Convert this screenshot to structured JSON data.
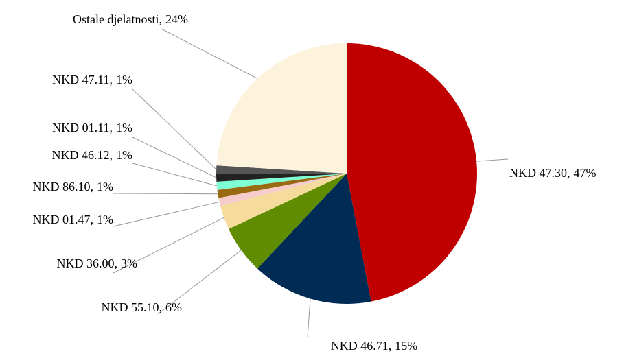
{
  "chart_data": {
    "type": "pie",
    "categories": [
      "NKD 47.30,",
      "NKD 46.71,",
      "NKD 55.10,",
      "NKD 36.00,",
      "NKD 01.47,",
      "NKD 86.10,",
      "NKD 46.12,",
      "NKD 01.11,",
      "NKD 47.11,",
      "Ostale djelatnosti,"
    ],
    "values": [
      47,
      15,
      6,
      3,
      1,
      1,
      1,
      1,
      1,
      24
    ],
    "value_labels": [
      "47%",
      "15%",
      "6%",
      "3%",
      "1%",
      "1%",
      "1%",
      "1%",
      "1%",
      "24%"
    ],
    "colors": [
      "#c00000",
      "#002b55",
      "#5f8c00",
      "#f5dc9c",
      "#f7cccc",
      "#9a6a12",
      "#7fffd4",
      "#222222",
      "#555555",
      "#fdf2dc"
    ]
  }
}
